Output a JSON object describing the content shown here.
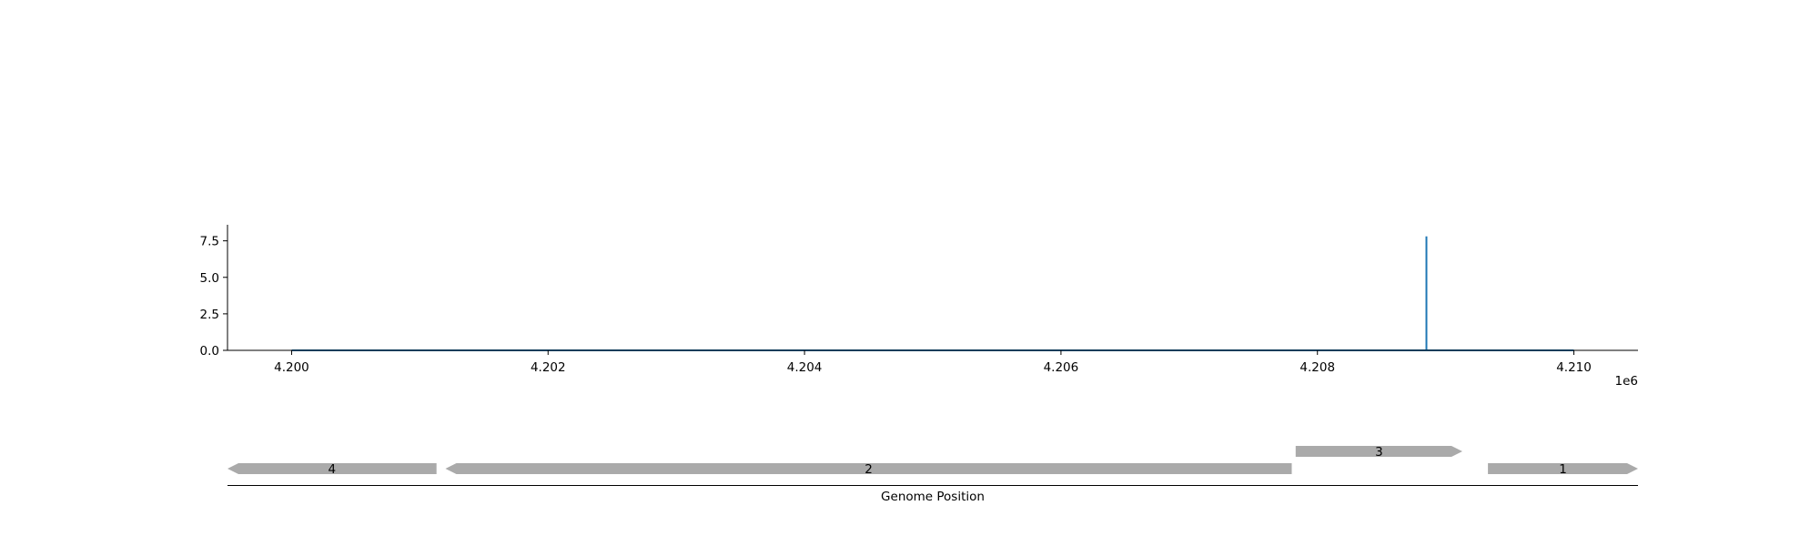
{
  "chart_data": [
    {
      "type": "line",
      "title": "",
      "xlabel": "",
      "ylabel": "",
      "x_offset_label": "1e6",
      "xlim": [
        4199500,
        4210500
      ],
      "ylim": [
        0,
        8.6
      ],
      "xticks": [
        4200000,
        4202000,
        4204000,
        4206000,
        4208000,
        4210000
      ],
      "xtick_labels": [
        "4.200",
        "4.202",
        "4.204",
        "4.206",
        "4.208",
        "4.210"
      ],
      "yticks": [
        0,
        2.5,
        5,
        7.5
      ],
      "ytick_labels": [
        "0.0",
        "2.5",
        "5.0",
        "7.5"
      ],
      "grid": false,
      "color": "#1f77b4",
      "series": [
        {
          "x": [
            4200000,
            4208850,
            4208850,
            4208850,
            4210000
          ],
          "y": [
            0,
            0,
            7.8,
            0,
            0
          ]
        }
      ]
    },
    {
      "type": "gene-track",
      "xlabel": "Genome Position",
      "xlim": [
        4199500,
        4210500
      ],
      "fill_color": "#aaaaaa",
      "features": [
        {
          "label": "4",
          "start": 4199500,
          "end": 4201130,
          "strand": -1,
          "row": 0
        },
        {
          "label": "2",
          "start": 4201200,
          "end": 4207800,
          "strand": -1,
          "row": 0
        },
        {
          "label": "3",
          "start": 4207830,
          "end": 4209130,
          "strand": 1,
          "row": 1
        },
        {
          "label": "1",
          "start": 4209330,
          "end": 4210500,
          "strand": 1,
          "row": 0
        }
      ]
    }
  ]
}
